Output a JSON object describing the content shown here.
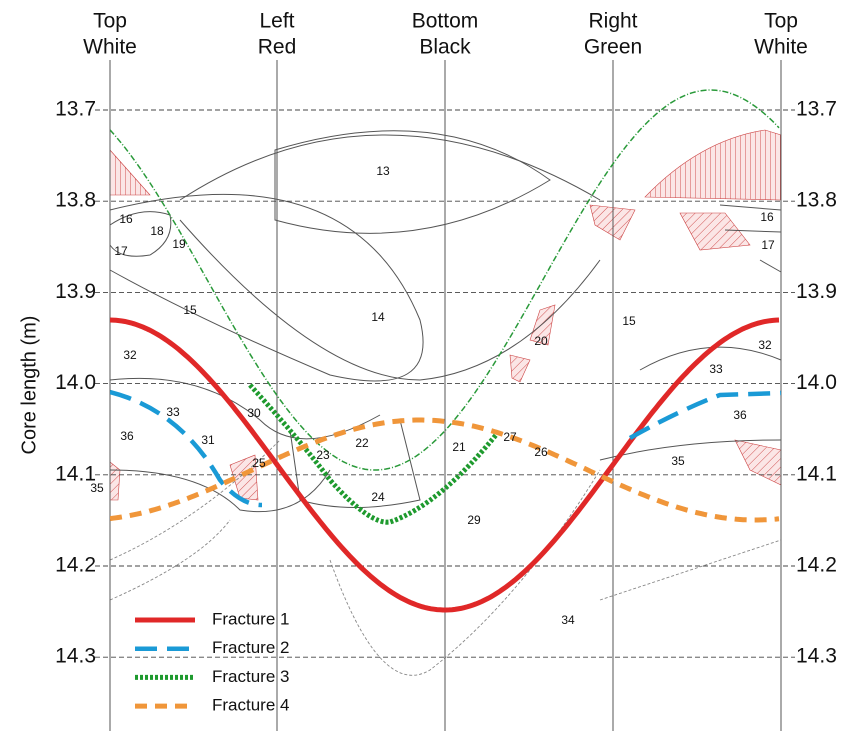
{
  "columns": [
    {
      "line1": "Top",
      "line2": "White"
    },
    {
      "line1": "Left",
      "line2": "Red"
    },
    {
      "line1": "Bottom",
      "line2": "Black"
    },
    {
      "line1": "Right",
      "line2": "Green"
    },
    {
      "line1": "Top",
      "line2": "White"
    }
  ],
  "y_axis": {
    "label": "Core length (m)",
    "ticks": [
      "13.7",
      "13.8",
      "13.9",
      "14.0",
      "14.1",
      "14.2",
      "14.3"
    ]
  },
  "regions": [
    "13",
    "14",
    "15",
    "15",
    "16",
    "16",
    "17",
    "17",
    "18",
    "19",
    "20",
    "21",
    "22",
    "23",
    "24",
    "25",
    "26",
    "27",
    "29",
    "30",
    "31",
    "32",
    "32",
    "33",
    "33",
    "34",
    "35",
    "35",
    "36",
    "36"
  ],
  "legend": [
    "Fracture 1",
    "Fracture 2",
    "Fracture 3",
    "Fracture 4"
  ]
}
